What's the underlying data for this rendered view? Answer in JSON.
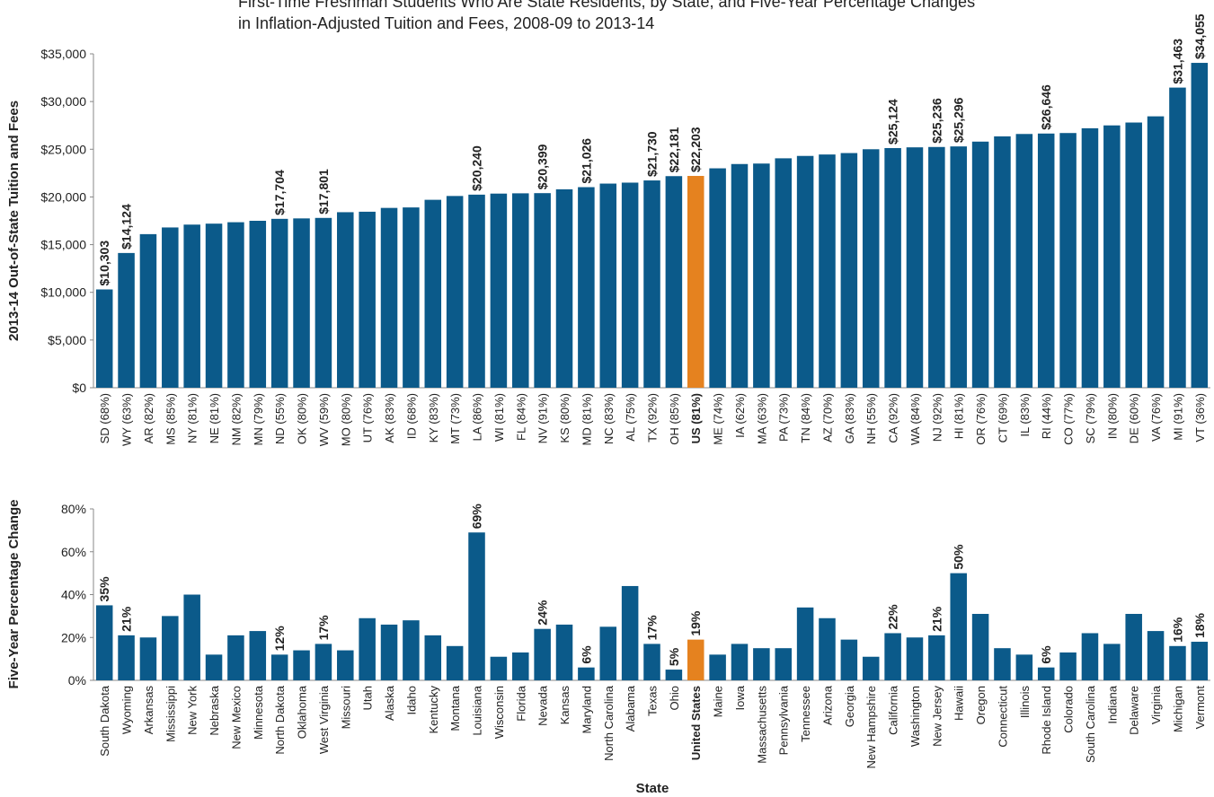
{
  "chart_data": [
    {
      "type": "bar",
      "title": [
        "First-Time Freshman Students Who Are State Residents, by State, and Five-Year Percentage Changes",
        "in Inflation-Adjusted Tuition and Fees, 2008-09 to 2013-14"
      ],
      "y_label": "2013-14 Out-of-State Tuition and Fees",
      "categories": [
        "SD (68%)",
        "WY (63%)",
        "AR (82%)",
        "MS (85%)",
        "NY (81%)",
        "NE (81%)",
        "NM (82%)",
        "MN (79%)",
        "ND (55%)",
        "OK (80%)",
        "WV (59%)",
        "MO (80%)",
        "UT (76%)",
        "AK (83%)",
        "ID (68%)",
        "KY (83%)",
        "MT (73%)",
        "LA (86%)",
        "WI (81%)",
        "FL (84%)",
        "NV (91%)",
        "KS (80%)",
        "MD (81%)",
        "NC (83%)",
        "AL (75%)",
        "TX (92%)",
        "OH (85%)",
        "US (81%)",
        "ME (74%)",
        "IA (62%)",
        "MA (63%)",
        "PA (73%)",
        "TN (84%)",
        "AZ (70%)",
        "GA (83%)",
        "NH (55%)",
        "CA (92%)",
        "WA (84%)",
        "NJ (92%)",
        "HI (81%)",
        "OR (76%)",
        "CT (69%)",
        "IL (83%)",
        "RI (44%)",
        "CO (77%)",
        "SC (79%)",
        "IN (80%)",
        "DE (60%)",
        "VA (76%)",
        "MI (91%)",
        "VT (36%)"
      ],
      "values": [
        10303,
        14124,
        16100,
        16800,
        17100,
        17200,
        17350,
        17500,
        17704,
        17750,
        17801,
        18400,
        18450,
        18850,
        18900,
        19700,
        20100,
        20240,
        20350,
        20380,
        20399,
        20800,
        21026,
        21400,
        21500,
        21730,
        22181,
        22203,
        23000,
        23450,
        23500,
        24050,
        24300,
        24450,
        24600,
        25000,
        25124,
        25200,
        25236,
        25296,
        25800,
        26350,
        26600,
        26646,
        26700,
        27200,
        27500,
        27800,
        28450,
        31463,
        34055
      ],
      "value_labels": [
        "$10,303",
        "$14,124",
        null,
        null,
        null,
        null,
        null,
        null,
        "$17,704",
        null,
        "$17,801",
        null,
        null,
        null,
        null,
        null,
        null,
        "$20,240",
        null,
        null,
        "$20,399",
        null,
        "$21,026",
        null,
        null,
        "$21,730",
        "$22,181",
        "$22,203",
        null,
        null,
        null,
        null,
        null,
        null,
        null,
        null,
        "$25,124",
        null,
        "$25,236",
        "$25,296",
        null,
        null,
        null,
        "$26,646",
        null,
        null,
        null,
        null,
        null,
        "$31,463",
        "$34,055"
      ],
      "color": "#0b5a8a",
      "highlight": {
        "category": "US (81%)",
        "color": "#e5821f"
      },
      "ylim": [
        0,
        35000
      ],
      "yticks": [
        {
          "value": 0,
          "label": "$0"
        },
        {
          "value": 5000,
          "label": "$5,000"
        },
        {
          "value": 10000,
          "label": "$10,000"
        },
        {
          "value": 15000,
          "label": "$15,000"
        },
        {
          "value": 20000,
          "label": "$20,000"
        },
        {
          "value": 25000,
          "label": "$25,000"
        },
        {
          "value": 30000,
          "label": "$30,000"
        },
        {
          "value": 35000,
          "label": "$35,000"
        }
      ],
      "grid": false
    },
    {
      "type": "bar",
      "y_label": "Five-Year Percentage Change",
      "x_label": "State",
      "categories": [
        "South Dakota",
        "Wyoming",
        "Arkansas",
        "Mississippi",
        "New York",
        "Nebraska",
        "New Mexico",
        "Minnesota",
        "North Dakota",
        "Oklahoma",
        "West Virginia",
        "Missouri",
        "Utah",
        "Alaska",
        "Idaho",
        "Kentucky",
        "Montana",
        "Louisiana",
        "Wisconsin",
        "Florida",
        "Nevada",
        "Kansas",
        "Maryland",
        "North Carolina",
        "Alabama",
        "Texas",
        "Ohio",
        "United States",
        "Maine",
        "Iowa",
        "Massachusetts",
        "Pennsylvania",
        "Tennessee",
        "Arizona",
        "Georgia",
        "New Hampshire",
        "California",
        "Washington",
        "New Jersey",
        "Hawaii",
        "Oregon",
        "Connecticut",
        "Illinois",
        "Rhode Island",
        "Colorado",
        "South Carolina",
        "Indiana",
        "Delaware",
        "Virginia",
        "Michigan",
        "Vermont"
      ],
      "values": [
        35,
        21,
        20,
        30,
        40,
        12,
        21,
        23,
        12,
        14,
        17,
        14,
        29,
        26,
        28,
        21,
        16,
        69,
        11,
        13,
        24,
        26,
        6,
        25,
        44,
        17,
        5,
        19,
        12,
        17,
        15,
        15,
        34,
        29,
        19,
        11,
        22,
        20,
        21,
        50,
        31,
        15,
        12,
        6,
        13,
        22,
        17,
        31,
        23,
        16,
        18
      ],
      "value_labels": [
        "35%",
        "21%",
        null,
        null,
        null,
        null,
        null,
        null,
        "12%",
        null,
        "17%",
        null,
        null,
        null,
        null,
        null,
        null,
        "69%",
        null,
        null,
        "24%",
        null,
        "6%",
        null,
        null,
        "17%",
        "5%",
        "19%",
        null,
        null,
        null,
        null,
        null,
        null,
        null,
        null,
        "22%",
        null,
        "21%",
        "50%",
        null,
        null,
        null,
        "6%",
        null,
        null,
        null,
        null,
        null,
        "16%",
        "18%"
      ],
      "color": "#0b5a8a",
      "highlight": {
        "category": "United States",
        "color": "#e5821f"
      },
      "ylim": [
        0,
        80
      ],
      "yticks": [
        {
          "value": 0,
          "label": "0%"
        },
        {
          "value": 20,
          "label": "20%"
        },
        {
          "value": 40,
          "label": "40%"
        },
        {
          "value": 60,
          "label": "60%"
        },
        {
          "value": 80,
          "label": "80%"
        }
      ],
      "grid": false
    }
  ]
}
